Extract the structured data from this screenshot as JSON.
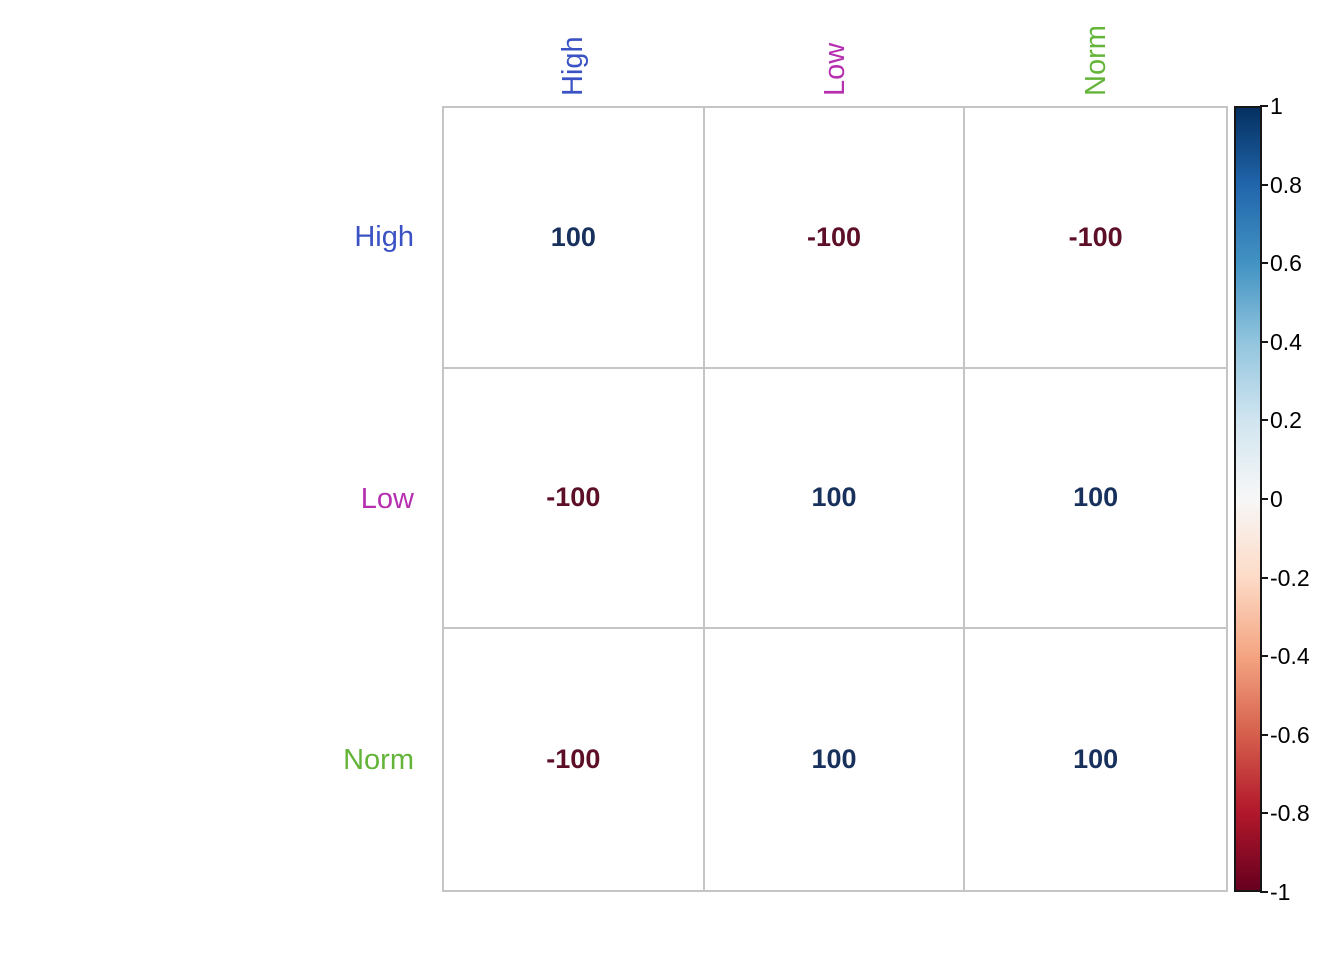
{
  "chart_data": {
    "type": "heatmap",
    "title": "",
    "categories": [
      "High",
      "Low",
      "Norm"
    ],
    "row_labels": [
      {
        "label": "High",
        "color": "#3a52c4"
      },
      {
        "label": "Low",
        "color": "#b52fb0"
      },
      {
        "label": "Norm",
        "color": "#64b43a"
      }
    ],
    "col_labels": [
      {
        "label": "High",
        "color": "#3a52c4"
      },
      {
        "label": "Low",
        "color": "#b52fb0"
      },
      {
        "label": "Norm",
        "color": "#64b43a"
      }
    ],
    "matrix_display": [
      [
        "100",
        "-100",
        "-100"
      ],
      [
        "-100",
        "100",
        "100"
      ],
      [
        "-100",
        "100",
        "100"
      ]
    ],
    "matrix_values": [
      [
        1,
        -1,
        -1
      ],
      [
        -1,
        1,
        1
      ],
      [
        -1,
        1,
        1
      ]
    ],
    "positive_value_color": "#17305c",
    "negative_value_color": "#5c0f26",
    "cell_background": "#ffffff",
    "grid_line_color": "#c5c5c5",
    "colorbar": {
      "min": -1,
      "max": 1,
      "tick_labels": [
        "1",
        "0.8",
        "0.6",
        "0.4",
        "0.2",
        "0",
        "-0.2",
        "-0.4",
        "-0.6",
        "-0.8",
        "-1"
      ],
      "gradient_stops_top_to_bottom": [
        "#053061",
        "#2166ac",
        "#4393c3",
        "#92c5de",
        "#d1e5f0",
        "#f7f7f7",
        "#fddbc7",
        "#f4a582",
        "#d6604d",
        "#b2182b",
        "#67001f"
      ],
      "legend_position": "right"
    },
    "legend": "correlation scale -1 to 1",
    "grid": true
  }
}
